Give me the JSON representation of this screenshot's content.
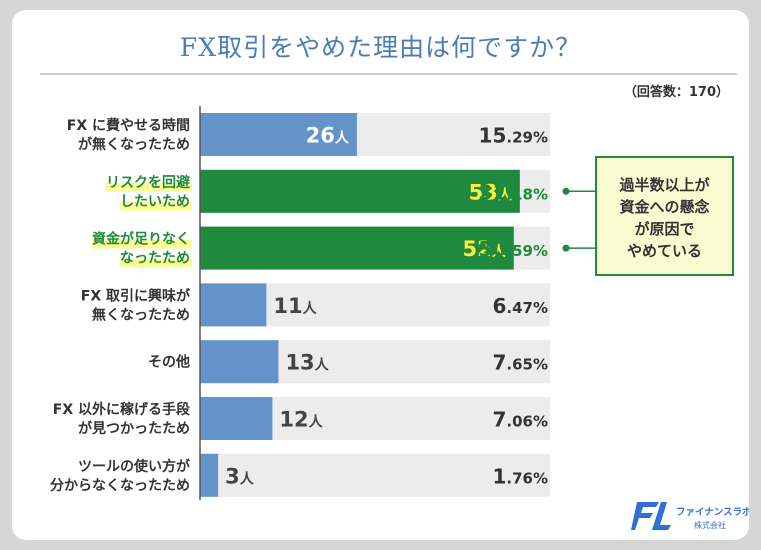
{
  "title": "FX取引をやめた理由は何ですか？",
  "note": "（回答数：170）",
  "callout": {
    "lines": [
      "過半数以上が",
      "資金への懸念",
      "が原因で",
      "やめている"
    ]
  },
  "brand": {
    "name": "ファイナンスラボ",
    "sub": "株式会社"
  },
  "colors": {
    "blue": "#6393c9",
    "green": "#1f8a3d",
    "track": "#ececec",
    "highlight": "#fbfb9a",
    "callout_bg": "#fbfbd2",
    "text": "#333333",
    "yellow": "#ffee3a"
  },
  "chart_data": {
    "type": "bar",
    "orientation": "horizontal",
    "title": "FX取引をやめた理由は何ですか？",
    "total_respondents": 170,
    "unit": "人",
    "xlim": [
      0,
      58
    ],
    "categories": [
      [
        "FX に費やせる時間",
        "が無くなったため"
      ],
      [
        "リスクを回避",
        "したいため"
      ],
      [
        "資金が足りなく",
        "なったため"
      ],
      [
        "FX 取引に興味が",
        "無くなったため"
      ],
      [
        "その他"
      ],
      [
        "FX 以外に稼げる手段",
        "が見つかったため"
      ],
      [
        "ツールの使い方が",
        "分からなくなったため"
      ]
    ],
    "values": [
      26,
      53,
      52,
      11,
      13,
      12,
      3
    ],
    "percent_int": [
      "15",
      "31",
      "30",
      "6",
      "7",
      "7",
      "1"
    ],
    "percent_dec": [
      ".29%",
      ".18%",
      ".59%",
      ".47%",
      ".65%",
      ".06%",
      ".76%"
    ],
    "highlight": [
      false,
      true,
      true,
      false,
      false,
      false,
      false
    ]
  }
}
